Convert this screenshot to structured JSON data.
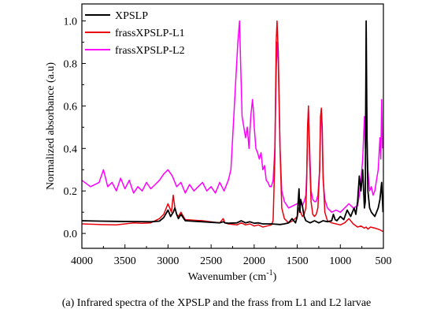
{
  "caption": "(a) Infrared spectra of the XPSLP and the frass from L1 and L2 larvae",
  "chart_data": {
    "type": "line",
    "xlabel": "Wavenumber (cm",
    "xlabel_sup": "-1",
    "xlabel_close": ")",
    "ylabel": "Normalized absorbance (a.u)",
    "xlim": [
      4000,
      500
    ],
    "x_reversed": true,
    "ylim": [
      -0.07,
      1.08
    ],
    "x_ticks": [
      4000,
      3500,
      3000,
      2500,
      2000,
      1500,
      1000,
      500
    ],
    "x_tick_labels": [
      "4000",
      "3500",
      "3000",
      "2500",
      "2000",
      "1500",
      "1000",
      "500"
    ],
    "y_ticks": [
      0.0,
      0.2,
      0.4,
      0.6,
      0.8,
      1.0
    ],
    "y_tick_labels": [
      "0.0",
      "0.2",
      "0.4",
      "0.6",
      "0.8",
      "1.0"
    ],
    "legend_position": "top-left",
    "grid": false,
    "series": [
      {
        "name": "XPSLP",
        "color": "#000000",
        "x": [
          4000,
          3800,
          3600,
          3400,
          3200,
          3100,
          3050,
          3000,
          2970,
          2940,
          2920,
          2900,
          2880,
          2850,
          2800,
          2600,
          2400,
          2360,
          2340,
          2300,
          2200,
          2150,
          2100,
          2050,
          2000,
          1950,
          1900,
          1800,
          1700,
          1650,
          1600,
          1560,
          1520,
          1500,
          1480,
          1470,
          1460,
          1440,
          1420,
          1400,
          1350,
          1300,
          1250,
          1200,
          1150,
          1100,
          1080,
          1060,
          1040,
          1000,
          960,
          920,
          880,
          840,
          820,
          800,
          780,
          760,
          740,
          720,
          710,
          700,
          690,
          680,
          660,
          640,
          620,
          600,
          560,
          540,
          520,
          505
        ],
        "y": [
          0.06,
          0.058,
          0.057,
          0.056,
          0.055,
          0.058,
          0.075,
          0.11,
          0.08,
          0.1,
          0.12,
          0.09,
          0.07,
          0.09,
          0.06,
          0.055,
          0.05,
          0.055,
          0.05,
          0.048,
          0.05,
          0.06,
          0.05,
          0.055,
          0.048,
          0.05,
          0.045,
          0.045,
          0.042,
          0.045,
          0.05,
          0.07,
          0.05,
          0.08,
          0.21,
          0.1,
          0.16,
          0.13,
          0.08,
          0.06,
          0.05,
          0.06,
          0.05,
          0.06,
          0.055,
          0.06,
          0.09,
          0.065,
          0.06,
          0.08,
          0.065,
          0.11,
          0.08,
          0.12,
          0.09,
          0.15,
          0.27,
          0.2,
          0.3,
          0.12,
          0.15,
          1.0,
          0.45,
          0.2,
          0.12,
          0.1,
          0.09,
          0.08,
          0.12,
          0.16,
          0.24,
          0.1
        ]
      },
      {
        "name": "frassXPSLP-L1",
        "color": "#e8000b",
        "x": [
          4000,
          3800,
          3600,
          3500,
          3400,
          3300,
          3200,
          3100,
          3050,
          3000,
          2980,
          2960,
          2940,
          2920,
          2900,
          2880,
          2850,
          2800,
          2600,
          2400,
          2360,
          2340,
          2300,
          2200,
          2150,
          2100,
          2050,
          2000,
          1950,
          1900,
          1850,
          1800,
          1780,
          1760,
          1745,
          1735,
          1720,
          1700,
          1680,
          1650,
          1600,
          1550,
          1500,
          1480,
          1460,
          1440,
          1420,
          1400,
          1390,
          1380,
          1370,
          1360,
          1340,
          1320,
          1300,
          1280,
          1260,
          1240,
          1230,
          1220,
          1210,
          1200,
          1180,
          1150,
          1100,
          1050,
          1000,
          950,
          900,
          850,
          800,
          760,
          720,
          700,
          680,
          650,
          600,
          560,
          530,
          510,
          500
        ],
        "y": [
          0.045,
          0.042,
          0.04,
          0.045,
          0.05,
          0.048,
          0.05,
          0.07,
          0.09,
          0.14,
          0.12,
          0.1,
          0.18,
          0.12,
          0.09,
          0.08,
          0.1,
          0.065,
          0.06,
          0.05,
          0.07,
          0.05,
          0.045,
          0.04,
          0.05,
          0.04,
          0.045,
          0.035,
          0.04,
          0.03,
          0.035,
          0.04,
          0.06,
          0.35,
          0.9,
          1.0,
          0.85,
          0.4,
          0.12,
          0.07,
          0.05,
          0.06,
          0.08,
          0.12,
          0.1,
          0.08,
          0.09,
          0.12,
          0.25,
          0.5,
          0.6,
          0.4,
          0.15,
          0.09,
          0.08,
          0.09,
          0.12,
          0.3,
          0.55,
          0.59,
          0.5,
          0.28,
          0.1,
          0.06,
          0.05,
          0.045,
          0.04,
          0.05,
          0.07,
          0.045,
          0.03,
          0.035,
          0.025,
          0.03,
          0.02,
          0.03,
          0.025,
          0.02,
          0.015,
          0.01,
          0.01
        ]
      },
      {
        "name": "frassXPSLP-L2",
        "color": "#ff00ff",
        "x": [
          4000,
          3900,
          3800,
          3750,
          3700,
          3650,
          3600,
          3550,
          3500,
          3450,
          3400,
          3350,
          3300,
          3250,
          3200,
          3150,
          3100,
          3050,
          3000,
          2950,
          2900,
          2850,
          2800,
          2750,
          2700,
          2650,
          2600,
          2550,
          2500,
          2450,
          2400,
          2350,
          2300,
          2270,
          2250,
          2230,
          2210,
          2190,
          2170,
          2160,
          2150,
          2140,
          2120,
          2100,
          2080,
          2060,
          2040,
          2020,
          2010,
          2000,
          1990,
          1980,
          1960,
          1940,
          1920,
          1900,
          1880,
          1860,
          1840,
          1820,
          1800,
          1780,
          1760,
          1745,
          1735,
          1720,
          1700,
          1680,
          1650,
          1600,
          1550,
          1500,
          1480,
          1460,
          1440,
          1420,
          1400,
          1390,
          1380,
          1370,
          1360,
          1340,
          1320,
          1300,
          1280,
          1260,
          1240,
          1230,
          1220,
          1210,
          1200,
          1180,
          1150,
          1100,
          1050,
          1000,
          950,
          900,
          850,
          800,
          780,
          760,
          740,
          720,
          710,
          700,
          690,
          680,
          660,
          640,
          620,
          600,
          580,
          560,
          540,
          530,
          520,
          510
        ],
        "y": [
          0.25,
          0.22,
          0.24,
          0.3,
          0.22,
          0.24,
          0.2,
          0.26,
          0.21,
          0.25,
          0.19,
          0.22,
          0.2,
          0.24,
          0.21,
          0.23,
          0.25,
          0.28,
          0.3,
          0.27,
          0.22,
          0.24,
          0.19,
          0.23,
          0.2,
          0.22,
          0.24,
          0.2,
          0.22,
          0.19,
          0.24,
          0.2,
          0.25,
          0.3,
          0.45,
          0.6,
          0.75,
          0.9,
          1.0,
          0.85,
          0.7,
          0.55,
          0.5,
          0.45,
          0.5,
          0.4,
          0.55,
          0.63,
          0.58,
          0.5,
          0.45,
          0.4,
          0.38,
          0.35,
          0.38,
          0.3,
          0.32,
          0.25,
          0.24,
          0.22,
          0.22,
          0.25,
          0.4,
          0.75,
          0.9,
          0.8,
          0.4,
          0.2,
          0.15,
          0.12,
          0.13,
          0.14,
          0.15,
          0.14,
          0.13,
          0.15,
          0.18,
          0.28,
          0.5,
          0.58,
          0.45,
          0.2,
          0.16,
          0.15,
          0.15,
          0.18,
          0.3,
          0.52,
          0.58,
          0.45,
          0.25,
          0.16,
          0.12,
          0.1,
          0.11,
          0.1,
          0.12,
          0.14,
          0.12,
          0.13,
          0.18,
          0.25,
          0.35,
          0.55,
          0.4,
          0.83,
          0.45,
          0.3,
          0.2,
          0.22,
          0.18,
          0.2,
          0.25,
          0.3,
          0.45,
          0.35,
          0.63,
          0.4
        ]
      }
    ]
  }
}
